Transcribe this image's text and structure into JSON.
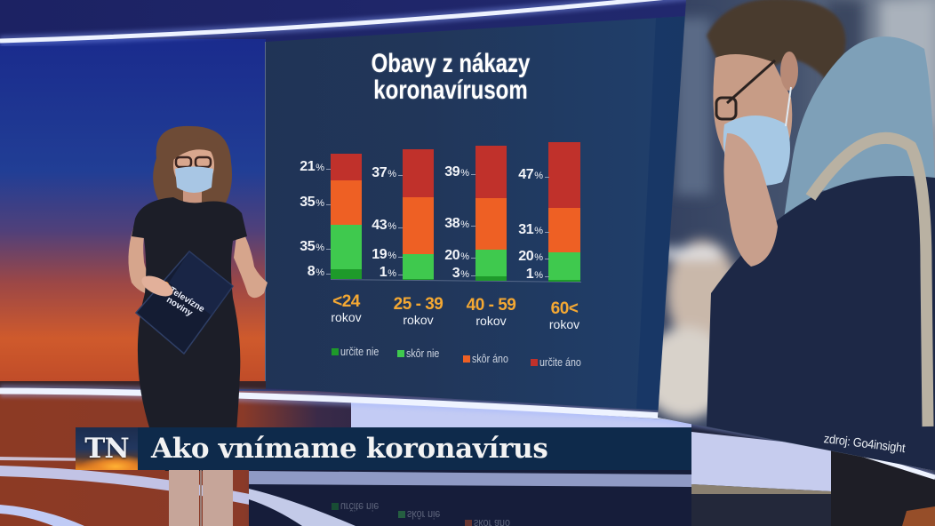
{
  "broadcast": {
    "channel_logo": "TN",
    "headline": "Ako vnímame koronavírus",
    "source_credit": "zdroj: Go4insight",
    "tablet_logo": {
      "line1": "Televízne",
      "line2": "noviny"
    }
  },
  "chart": {
    "title_line1": "Obavy z nákazy",
    "title_line2": "koronavírusom"
  },
  "colors": {
    "chart_panel": "#213659",
    "category_label": "#f4a833",
    "headline_bar": "#0e2a4b",
    "text": "#ffffff"
  },
  "chart_data": {
    "type": "bar",
    "stacked": true,
    "title": "Obavy z nákazy koronavírusom",
    "categories": [
      "<24",
      "25 - 39",
      "40 - 59",
      "60<"
    ],
    "category_suffix": "rokov",
    "unit": "%",
    "series": [
      {
        "name": "určite nie",
        "color": "#1e9a2a",
        "values": [
          8,
          1,
          3,
          1
        ]
      },
      {
        "name": "skôr nie",
        "color": "#3fc94e",
        "values": [
          35,
          19,
          20,
          20
        ]
      },
      {
        "name": "skôr áno",
        "color": "#ee6024",
        "values": [
          35,
          43,
          38,
          31
        ]
      },
      {
        "name": "určite áno",
        "color": "#c0312b",
        "values": [
          21,
          37,
          39,
          47
        ]
      }
    ],
    "xlabel": "",
    "ylabel": "",
    "ylim": [
      0,
      100
    ],
    "grid": false,
    "legend_position": "bottom",
    "source": "zdroj: Go4insight"
  }
}
